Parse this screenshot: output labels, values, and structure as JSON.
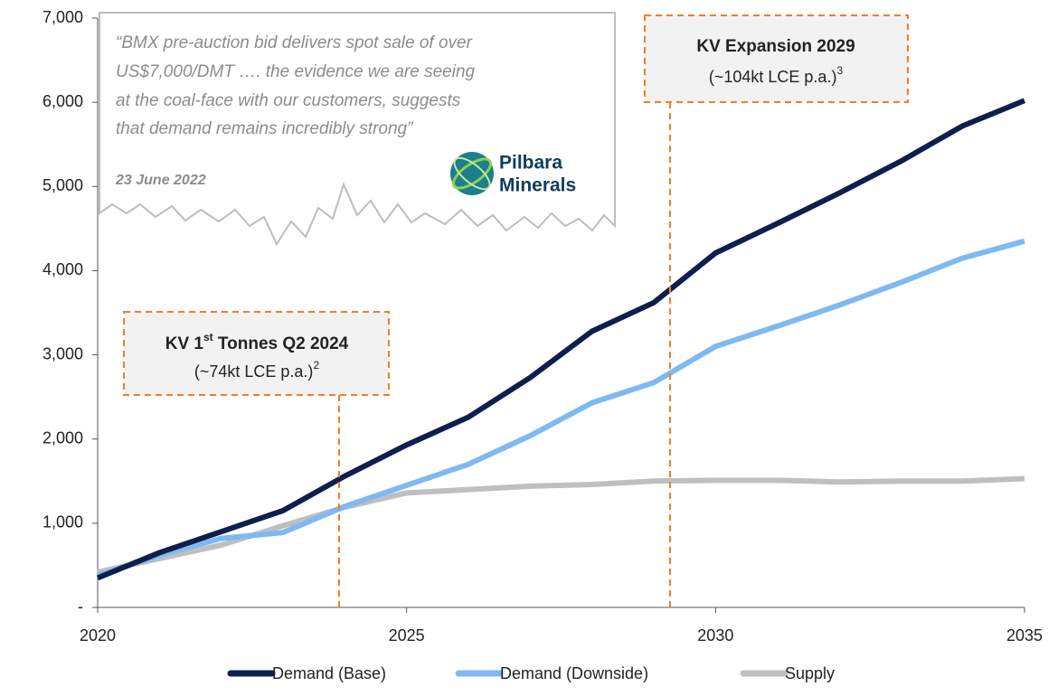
{
  "chart_data": {
    "type": "line",
    "x": [
      2020,
      2021,
      2022,
      2023,
      2024,
      2025,
      2026,
      2027,
      2028,
      2029,
      2030,
      2031,
      2032,
      2033,
      2034,
      2035
    ],
    "series": [
      {
        "name": "Demand (Base)",
        "color": "#0e1f4d",
        "values": [
          350,
          650,
          900,
          1150,
          1560,
          1930,
          2260,
          2730,
          3280,
          3620,
          4210,
          4560,
          4920,
          5300,
          5720,
          6020
        ]
      },
      {
        "name": "Demand (Downside)",
        "color": "#7fb9f2",
        "values": [
          380,
          620,
          820,
          890,
          1200,
          1450,
          1700,
          2040,
          2430,
          2670,
          3100,
          3340,
          3590,
          3860,
          4150,
          4350
        ]
      },
      {
        "name": "Supply",
        "color": "#bfbfbf",
        "values": [
          420,
          580,
          740,
          970,
          1190,
          1360,
          1400,
          1440,
          1460,
          1500,
          1510,
          1510,
          1490,
          1500,
          1500,
          1530
        ]
      }
    ],
    "xlim": [
      2020,
      2035
    ],
    "xticks": [
      2020,
      2025,
      2030,
      2035
    ],
    "ylim": [
      0,
      7000
    ],
    "yticks": [
      {
        "value": 0,
        "label": "-"
      },
      {
        "value": 1000,
        "label": "1,000"
      },
      {
        "value": 2000,
        "label": "2,000"
      },
      {
        "value": 3000,
        "label": "3,000"
      },
      {
        "value": 4000,
        "label": "4,000"
      },
      {
        "value": 5000,
        "label": "5,000"
      },
      {
        "value": 6000,
        "label": "6,000"
      },
      {
        "value": 7000,
        "label": "7,000"
      }
    ],
    "annotations": {
      "first_tonnes": {
        "title": "KV 1",
        "title_sup": "st",
        "title_rest": " Tonnes Q2 2024",
        "detail": "(~74kt LCE p.a.)",
        "detail_sup": "2"
      },
      "expansion": {
        "title": "KV Expansion 2029",
        "detail": "(~104kt LCE p.a.)",
        "detail_sup": "3"
      },
      "quote": {
        "lines": [
          "“BMX pre-auction bid delivers spot sale of over",
          "US$7,000/DMT …. the evidence we are seeing",
          "at the coal-face with our customers, suggests",
          "that demand remains incredibly strong”"
        ],
        "date": "23 June 2022",
        "logo": [
          "Pilbara",
          "Minerals"
        ]
      }
    }
  }
}
